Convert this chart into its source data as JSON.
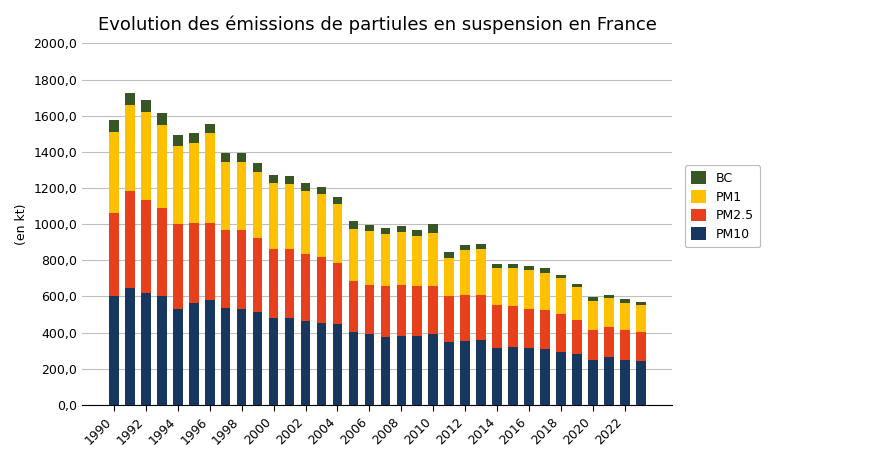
{
  "title": "Evolution des émissions de partiules en suspension en France",
  "ylabel": "(en kt)",
  "years": [
    1990,
    1991,
    1992,
    1993,
    1994,
    1995,
    1996,
    1997,
    1998,
    1999,
    2000,
    2001,
    2002,
    2003,
    2004,
    2005,
    2006,
    2007,
    2008,
    2009,
    2010,
    2011,
    2012,
    2013,
    2014,
    2015,
    2016,
    2017,
    2018,
    2019,
    2020,
    2021,
    2022,
    2023
  ],
  "PM10": [
    600,
    645,
    620,
    600,
    530,
    565,
    580,
    535,
    530,
    515,
    480,
    480,
    465,
    455,
    445,
    405,
    390,
    375,
    380,
    380,
    390,
    345,
    355,
    360,
    315,
    320,
    315,
    310,
    295,
    280,
    250,
    265,
    250,
    240
  ],
  "PM2_5": [
    460,
    540,
    515,
    490,
    470,
    440,
    425,
    435,
    435,
    410,
    385,
    380,
    370,
    365,
    340,
    280,
    275,
    280,
    285,
    275,
    270,
    255,
    255,
    250,
    235,
    225,
    215,
    215,
    205,
    190,
    165,
    165,
    165,
    165
  ],
  "PM1": [
    450,
    475,
    485,
    460,
    430,
    445,
    500,
    375,
    380,
    365,
    360,
    360,
    350,
    345,
    325,
    290,
    295,
    290,
    290,
    280,
    290,
    215,
    245,
    250,
    205,
    210,
    215,
    205,
    200,
    180,
    160,
    160,
    150,
    145
  ],
  "BC": [
    68,
    68,
    65,
    65,
    62,
    55,
    50,
    50,
    50,
    46,
    46,
    46,
    41,
    41,
    41,
    42,
    36,
    36,
    36,
    30,
    52,
    30,
    30,
    30,
    26,
    26,
    26,
    26,
    20,
    20,
    20,
    20,
    20,
    20
  ],
  "colors": {
    "PM10": "#17375e",
    "PM2_5": "#e8401c",
    "PM1": "#ffc000",
    "BC": "#375623"
  },
  "ylim": [
    0,
    2000
  ],
  "yticks": [
    0,
    200,
    400,
    600,
    800,
    1000,
    1200,
    1400,
    1600,
    1800,
    2000
  ],
  "background_color": "#ffffff",
  "grid_color": "#bfbfbf",
  "title_fontsize": 13,
  "bar_width": 0.6
}
